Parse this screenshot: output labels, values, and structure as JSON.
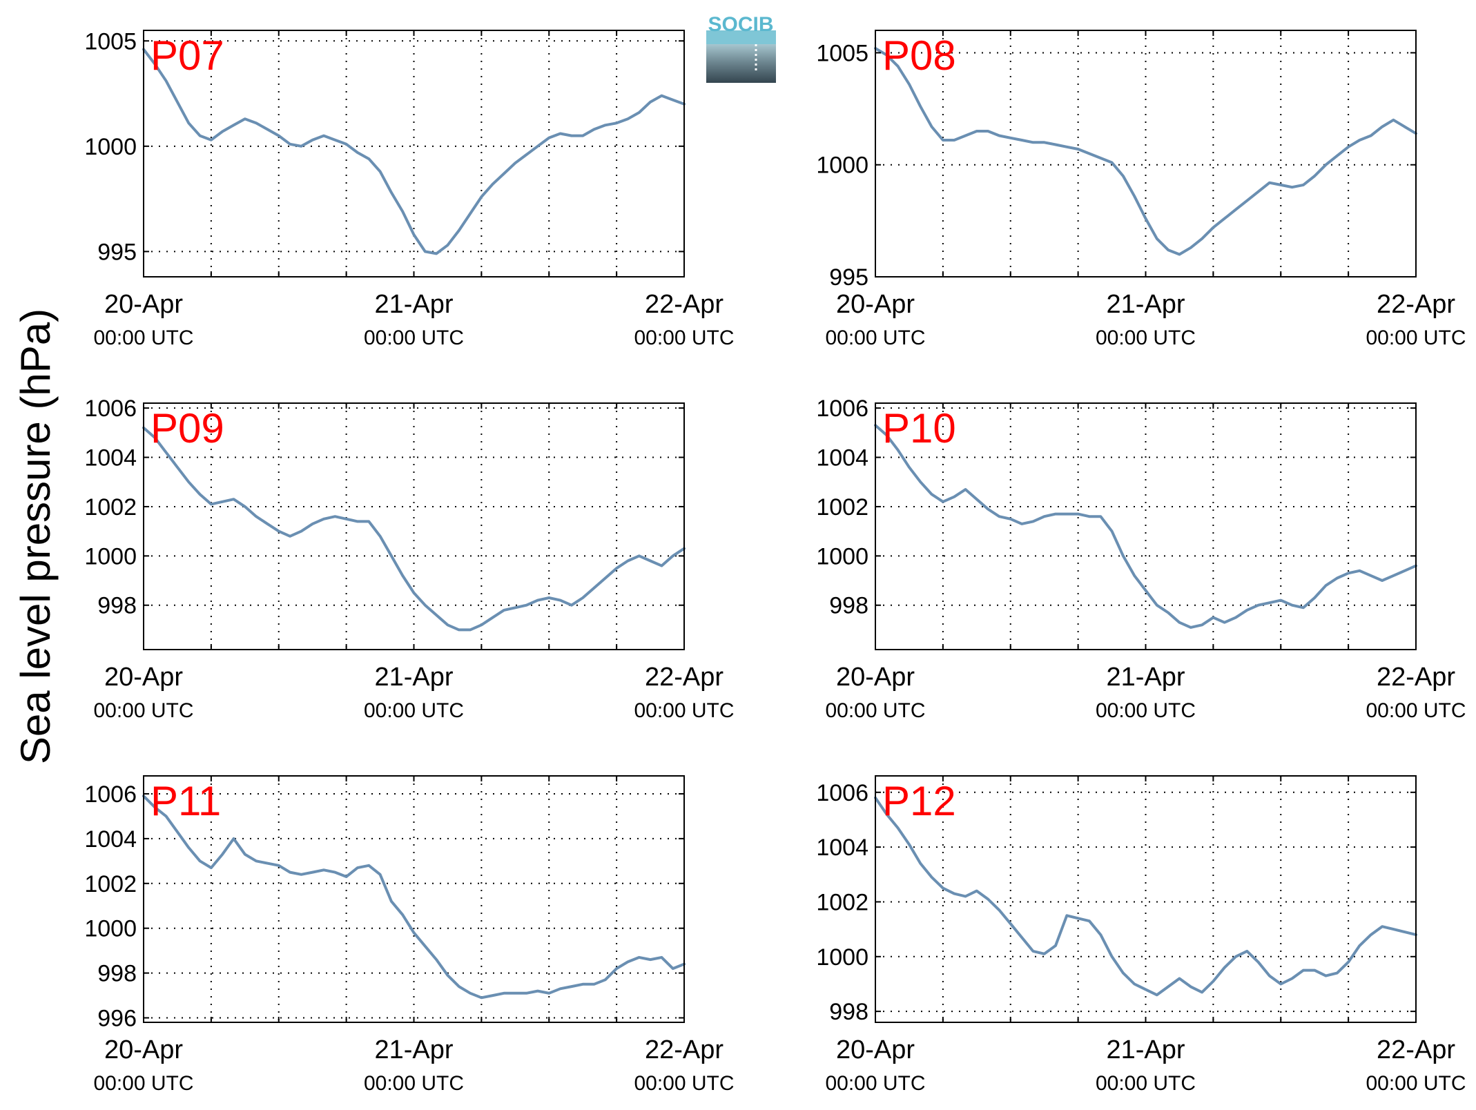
{
  "figure": {
    "ylabel": "Sea level pressure (hPa)",
    "logo_text": "SOCIB",
    "series_color": "#6a8fb2",
    "label_color": "#ff0000"
  },
  "chart_data": [
    {
      "type": "line",
      "title": "P07",
      "x_ticks": [
        {
          "date": "20-Apr",
          "time": "00:00 UTC"
        },
        {
          "date": "21-Apr",
          "time": "00:00 UTC"
        },
        {
          "date": "22-Apr",
          "time": "00:00 UTC"
        }
      ],
      "x_range_hours": [
        0,
        48
      ],
      "ylim": [
        993.8,
        1005.5
      ],
      "yticks": [
        995,
        1000,
        1005
      ],
      "grid": true,
      "series": [
        {
          "x": [
            0,
            1,
            2,
            3,
            4,
            5,
            6,
            7,
            8,
            9,
            10,
            11,
            12,
            13,
            14,
            15,
            16,
            17,
            18,
            19,
            20,
            21,
            22,
            23,
            24,
            25,
            26,
            27,
            28,
            29,
            30,
            31,
            32,
            33,
            34,
            35,
            36,
            37,
            38,
            39,
            40,
            41,
            42,
            43,
            44,
            45,
            46,
            47,
            48
          ],
          "y": [
            1004.6,
            1003.9,
            1003.1,
            1002.1,
            1001.1,
            1000.5,
            1000.3,
            1000.7,
            1001.0,
            1001.3,
            1001.1,
            1000.8,
            1000.5,
            1000.1,
            1000.0,
            1000.3,
            1000.5,
            1000.3,
            1000.1,
            999.7,
            999.4,
            998.8,
            997.8,
            996.9,
            995.8,
            995.0,
            994.9,
            995.3,
            996.0,
            996.8,
            997.6,
            998.2,
            998.7,
            999.2,
            999.6,
            1000.0,
            1000.4,
            1000.6,
            1000.5,
            1000.5,
            1000.8,
            1001.0,
            1001.1,
            1001.3,
            1001.6,
            1002.1,
            1002.4,
            1002.2,
            1002.0
          ]
        }
      ]
    },
    {
      "type": "line",
      "title": "P08",
      "x_ticks": [
        {
          "date": "20-Apr",
          "time": "00:00 UTC"
        },
        {
          "date": "21-Apr",
          "time": "00:00 UTC"
        },
        {
          "date": "22-Apr",
          "time": "00:00 UTC"
        }
      ],
      "x_range_hours": [
        0,
        48
      ],
      "ylim": [
        995,
        1006
      ],
      "yticks": [
        995,
        1000,
        1005
      ],
      "grid": true,
      "series": [
        {
          "x": [
            0,
            1,
            2,
            3,
            4,
            5,
            6,
            7,
            8,
            9,
            10,
            11,
            12,
            13,
            14,
            15,
            16,
            17,
            18,
            19,
            20,
            21,
            22,
            23,
            24,
            25,
            26,
            27,
            28,
            29,
            30,
            31,
            32,
            33,
            34,
            35,
            36,
            37,
            38,
            39,
            40,
            41,
            42,
            43,
            44,
            45,
            46,
            47,
            48
          ],
          "y": [
            1005.2,
            1004.9,
            1004.4,
            1003.6,
            1002.6,
            1001.7,
            1001.1,
            1001.1,
            1001.3,
            1001.5,
            1001.5,
            1001.3,
            1001.2,
            1001.1,
            1001.0,
            1001.0,
            1000.9,
            1000.8,
            1000.7,
            1000.5,
            1000.3,
            1000.1,
            999.5,
            998.6,
            997.6,
            996.7,
            996.2,
            996.0,
            996.3,
            996.7,
            997.2,
            997.6,
            998.0,
            998.4,
            998.8,
            999.2,
            999.1,
            999.0,
            999.1,
            999.5,
            1000.0,
            1000.4,
            1000.8,
            1001.1,
            1001.3,
            1001.7,
            1002.0,
            1001.7,
            1001.4
          ]
        }
      ]
    },
    {
      "type": "line",
      "title": "P09",
      "x_ticks": [
        {
          "date": "20-Apr",
          "time": "00:00 UTC"
        },
        {
          "date": "21-Apr",
          "time": "00:00 UTC"
        },
        {
          "date": "22-Apr",
          "time": "00:00 UTC"
        }
      ],
      "x_range_hours": [
        0,
        48
      ],
      "ylim": [
        996.2,
        1006.2
      ],
      "yticks": [
        998,
        1000,
        1002,
        1004,
        1006
      ],
      "grid": true,
      "series": [
        {
          "x": [
            0,
            1,
            2,
            3,
            4,
            5,
            6,
            7,
            8,
            9,
            10,
            11,
            12,
            13,
            14,
            15,
            16,
            17,
            18,
            19,
            20,
            21,
            22,
            23,
            24,
            25,
            26,
            27,
            28,
            29,
            30,
            31,
            32,
            33,
            34,
            35,
            36,
            37,
            38,
            39,
            40,
            41,
            42,
            43,
            44,
            45,
            46,
            47,
            48
          ],
          "y": [
            1005.2,
            1004.8,
            1004.2,
            1003.6,
            1003.0,
            1002.5,
            1002.1,
            1002.2,
            1002.3,
            1002.0,
            1001.6,
            1001.3,
            1001.0,
            1000.8,
            1001.0,
            1001.3,
            1001.5,
            1001.6,
            1001.5,
            1001.4,
            1001.4,
            1000.8,
            1000.0,
            999.2,
            998.5,
            998.0,
            997.6,
            997.2,
            997.0,
            997.0,
            997.2,
            997.5,
            997.8,
            997.9,
            998.0,
            998.2,
            998.3,
            998.2,
            998.0,
            998.3,
            998.7,
            999.1,
            999.5,
            999.8,
            1000.0,
            999.8,
            999.6,
            1000.0,
            1000.3
          ]
        }
      ]
    },
    {
      "type": "line",
      "title": "P10",
      "x_ticks": [
        {
          "date": "20-Apr",
          "time": "00:00 UTC"
        },
        {
          "date": "21-Apr",
          "time": "00:00 UTC"
        },
        {
          "date": "22-Apr",
          "time": "00:00 UTC"
        }
      ],
      "x_range_hours": [
        0,
        48
      ],
      "ylim": [
        996.2,
        1006.2
      ],
      "yticks": [
        998,
        1000,
        1002,
        1004,
        1006
      ],
      "grid": true,
      "series": [
        {
          "x": [
            0,
            1,
            2,
            3,
            4,
            5,
            6,
            7,
            8,
            9,
            10,
            11,
            12,
            13,
            14,
            15,
            16,
            17,
            18,
            19,
            20,
            21,
            22,
            23,
            24,
            25,
            26,
            27,
            28,
            29,
            30,
            31,
            32,
            33,
            34,
            35,
            36,
            37,
            38,
            39,
            40,
            41,
            42,
            43,
            44,
            45,
            46,
            47,
            48
          ],
          "y": [
            1005.3,
            1004.9,
            1004.3,
            1003.6,
            1003.0,
            1002.5,
            1002.2,
            1002.4,
            1002.7,
            1002.3,
            1001.9,
            1001.6,
            1001.5,
            1001.3,
            1001.4,
            1001.6,
            1001.7,
            1001.7,
            1001.7,
            1001.6,
            1001.6,
            1001.0,
            1000.0,
            999.2,
            998.6,
            998.0,
            997.7,
            997.3,
            997.1,
            997.2,
            997.5,
            997.3,
            997.5,
            997.8,
            998.0,
            998.1,
            998.2,
            998.0,
            997.9,
            998.3,
            998.8,
            999.1,
            999.3,
            999.4,
            999.2,
            999.0,
            999.2,
            999.4,
            999.6
          ]
        }
      ]
    },
    {
      "type": "line",
      "title": "P11",
      "x_ticks": [
        {
          "date": "20-Apr",
          "time": "00:00 UTC"
        },
        {
          "date": "21-Apr",
          "time": "00:00 UTC"
        },
        {
          "date": "22-Apr",
          "time": "00:00 UTC"
        }
      ],
      "x_range_hours": [
        0,
        48
      ],
      "ylim": [
        995.8,
        1006.8
      ],
      "yticks": [
        996,
        998,
        1000,
        1002,
        1004,
        1006
      ],
      "grid": true,
      "series": [
        {
          "x": [
            0,
            1,
            2,
            3,
            4,
            5,
            6,
            7,
            8,
            9,
            10,
            11,
            12,
            13,
            14,
            15,
            16,
            17,
            18,
            19,
            20,
            21,
            22,
            23,
            24,
            25,
            26,
            27,
            28,
            29,
            30,
            31,
            32,
            33,
            34,
            35,
            36,
            37,
            38,
            39,
            40,
            41,
            42,
            43,
            44,
            45,
            46,
            47,
            48
          ],
          "y": [
            1005.9,
            1005.4,
            1005.0,
            1004.3,
            1003.6,
            1003.0,
            1002.7,
            1003.3,
            1004.0,
            1003.3,
            1003.0,
            1002.9,
            1002.8,
            1002.5,
            1002.4,
            1002.5,
            1002.6,
            1002.5,
            1002.3,
            1002.7,
            1002.8,
            1002.4,
            1001.2,
            1000.6,
            999.8,
            999.2,
            998.6,
            997.9,
            997.4,
            997.1,
            996.9,
            997.0,
            997.1,
            997.1,
            997.1,
            997.2,
            997.1,
            997.3,
            997.4,
            997.5,
            997.5,
            997.7,
            998.2,
            998.5,
            998.7,
            998.6,
            998.7,
            998.2,
            998.4
          ]
        }
      ]
    },
    {
      "type": "line",
      "title": "P12",
      "x_ticks": [
        {
          "date": "20-Apr",
          "time": "00:00 UTC"
        },
        {
          "date": "21-Apr",
          "time": "00:00 UTC"
        },
        {
          "date": "22-Apr",
          "time": "00:00 UTC"
        }
      ],
      "x_range_hours": [
        0,
        48
      ],
      "ylim": [
        997.6,
        1006.6
      ],
      "yticks": [
        998,
        1000,
        1002,
        1004,
        1006
      ],
      "grid": true,
      "series": [
        {
          "x": [
            0,
            1,
            2,
            3,
            4,
            5,
            6,
            7,
            8,
            9,
            10,
            11,
            12,
            13,
            14,
            15,
            16,
            17,
            18,
            19,
            20,
            21,
            22,
            23,
            24,
            25,
            26,
            27,
            28,
            29,
            30,
            31,
            32,
            33,
            34,
            35,
            36,
            37,
            38,
            39,
            40,
            41,
            42,
            43,
            44,
            45,
            46,
            47,
            48
          ],
          "y": [
            1005.8,
            1005.2,
            1004.7,
            1004.1,
            1003.4,
            1002.9,
            1002.5,
            1002.3,
            1002.2,
            1002.4,
            1002.1,
            1001.7,
            1001.2,
            1000.7,
            1000.2,
            1000.1,
            1000.4,
            1001.5,
            1001.4,
            1001.3,
            1000.8,
            1000.0,
            999.4,
            999.0,
            998.8,
            998.6,
            998.9,
            999.2,
            998.9,
            998.7,
            999.1,
            999.6,
            1000.0,
            1000.2,
            999.8,
            999.3,
            999.0,
            999.2,
            999.5,
            999.5,
            999.3,
            999.4,
            999.8,
            1000.4,
            1000.8,
            1001.1,
            1001.0,
            1000.9,
            1000.8
          ]
        }
      ]
    }
  ]
}
